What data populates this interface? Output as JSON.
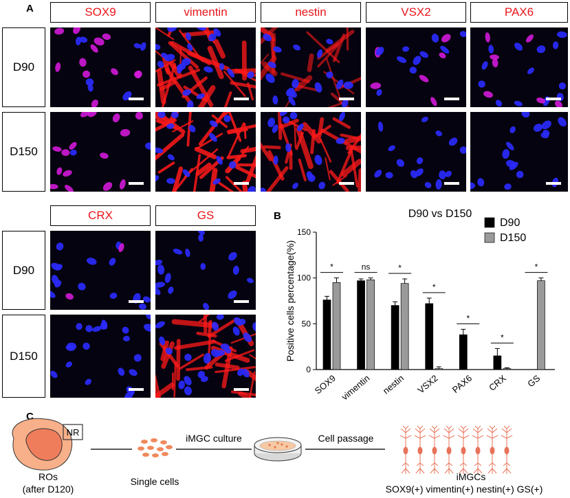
{
  "panels": {
    "a": "A",
    "b": "B",
    "c": "C"
  },
  "markers_top": [
    "SOX9",
    "vimentin",
    "nestin",
    "VSX2",
    "PAX6"
  ],
  "markers_bottom": [
    "CRX",
    "GS"
  ],
  "row_labels": [
    "D90",
    "D150"
  ],
  "colors": {
    "marker_text": "#e8151b",
    "d90": "#000000",
    "d150": "#9a9a9a",
    "nucleus": "#2b2bff",
    "stain": "#ff1a1a",
    "cell": "#f08a5d"
  },
  "chart_data": {
    "type": "bar",
    "title": "D90 vs D150",
    "xlabel": "",
    "ylabel": "Positive cells percentage(%)",
    "ylim": [
      0,
      150
    ],
    "yticks": [
      0,
      50,
      100,
      150
    ],
    "categories": [
      "SOX9",
      "vimentin",
      "nestin",
      "VSX2",
      "PAX6",
      "CRX",
      "GS"
    ],
    "series": [
      {
        "name": "D90",
        "values": [
          76,
          97,
          70,
          72,
          38,
          15,
          0
        ],
        "errors": [
          4,
          2,
          4,
          6,
          6,
          8,
          0
        ]
      },
      {
        "name": "D150",
        "values": [
          95,
          98,
          94,
          1,
          0,
          1,
          97
        ],
        "errors": [
          5,
          2,
          5,
          2,
          0,
          1,
          3
        ]
      }
    ],
    "significance": [
      "*",
      "ns",
      "*",
      "*",
      "*",
      "*",
      "*"
    ],
    "legend": "top-right",
    "grid": false
  },
  "schematic": {
    "organoid_tag": "NR",
    "organoid_label_1": "ROs",
    "organoid_label_2": "(after D120)",
    "single_cells": "Single cells",
    "culture": "iMGC culture",
    "passage": "Cell passage",
    "result": "iMGCs",
    "result_markers": "SOX9(+) vimentin(+) nestin(+) GS(+)"
  }
}
